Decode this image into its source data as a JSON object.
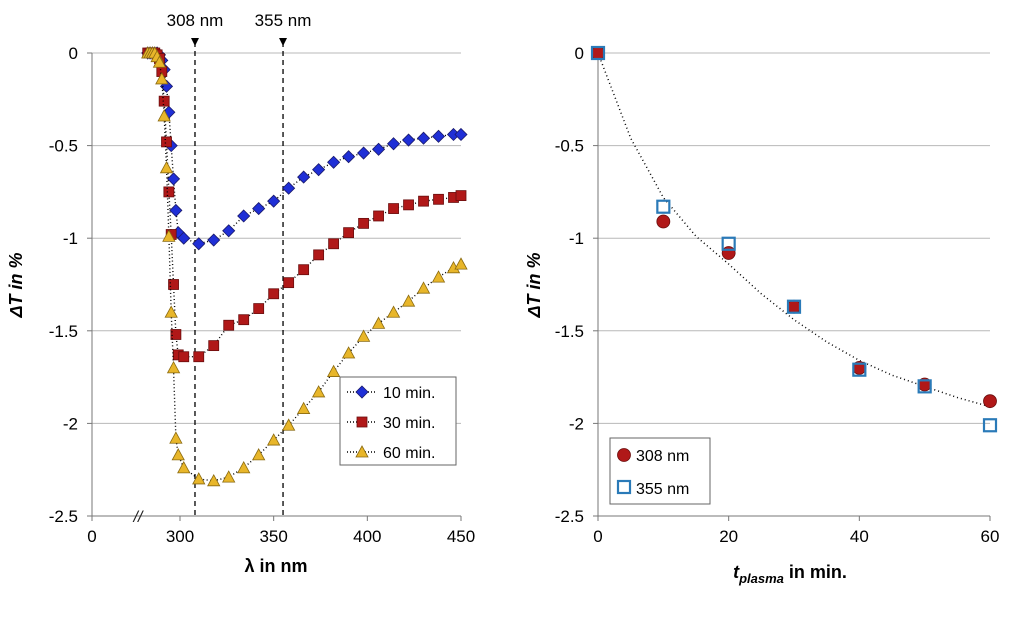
{
  "chart_data": [
    {
      "type": "line",
      "xlabel": "λ in nm",
      "ylabel": "ΔT in %",
      "xlim": [
        0,
        450
      ],
      "ylim": [
        -2.5,
        0
      ],
      "xticks": [
        "0",
        "300",
        "350",
        "400",
        "450"
      ],
      "yticks": [
        "0",
        "-0.5",
        "-1",
        "-1.5",
        "-2",
        "-2.5"
      ],
      "axis_break_label": "//",
      "grid": true,
      "legend_position": "bottom-right",
      "markers": [
        {
          "label": "308 nm",
          "x": 308
        },
        {
          "label": "355 nm",
          "x": 355
        }
      ],
      "series": [
        {
          "name": "10 min.",
          "color": "#1f2fd6",
          "marker": "diamond",
          "x": [
            190,
            198,
            206,
            214,
            222,
            230,
            238,
            246,
            254,
            262,
            270,
            278,
            286,
            294,
            302,
            310,
            318,
            326,
            334,
            342,
            350,
            358,
            366,
            374,
            382,
            390,
            398,
            406,
            414,
            422,
            430,
            438,
            446,
            450
          ],
          "y": [
            0,
            0,
            0,
            0,
            0,
            -0.01,
            -0.04,
            -0.09,
            -0.18,
            -0.32,
            -0.5,
            -0.68,
            -0.85,
            -0.97,
            -1.0,
            -1.03,
            -1.01,
            -0.96,
            -0.88,
            -0.84,
            -0.8,
            -0.73,
            -0.67,
            -0.63,
            -0.59,
            -0.56,
            -0.54,
            -0.52,
            -0.49,
            -0.47,
            -0.46,
            -0.45,
            -0.44,
            -0.44
          ]
        },
        {
          "name": "30 min.",
          "color": "#b01818",
          "marker": "square",
          "x": [
            190,
            198,
            206,
            214,
            222,
            230,
            238,
            246,
            254,
            262,
            270,
            278,
            286,
            294,
            302,
            310,
            318,
            326,
            334,
            342,
            350,
            358,
            366,
            374,
            382,
            390,
            398,
            406,
            414,
            422,
            430,
            438,
            446,
            450
          ],
          "y": [
            0,
            0,
            0,
            0,
            -0.01,
            -0.03,
            -0.1,
            -0.26,
            -0.48,
            -0.75,
            -0.98,
            -1.25,
            -1.52,
            -1.63,
            -1.64,
            -1.64,
            -1.58,
            -1.47,
            -1.44,
            -1.38,
            -1.3,
            -1.24,
            -1.17,
            -1.09,
            -1.03,
            -0.97,
            -0.92,
            -0.88,
            -0.84,
            -0.82,
            -0.8,
            -0.79,
            -0.78,
            -0.77
          ]
        },
        {
          "name": "60 min.",
          "color": "#e8b62a",
          "marker": "triangle",
          "x": [
            190,
            198,
            206,
            214,
            222,
            230,
            238,
            246,
            254,
            262,
            270,
            278,
            286,
            294,
            302,
            310,
            318,
            326,
            334,
            342,
            350,
            358,
            366,
            374,
            382,
            390,
            398,
            406,
            414,
            422,
            430,
            438,
            446,
            450
          ],
          "y": [
            0,
            0,
            0,
            0,
            -0.02,
            -0.05,
            -0.14,
            -0.34,
            -0.62,
            -0.99,
            -1.4,
            -1.7,
            -2.08,
            -2.17,
            -2.24,
            -2.3,
            -2.31,
            -2.29,
            -2.24,
            -2.17,
            -2.09,
            -2.01,
            -1.92,
            -1.83,
            -1.72,
            -1.62,
            -1.53,
            -1.46,
            -1.4,
            -1.34,
            -1.27,
            -1.21,
            -1.16,
            -1.14
          ]
        }
      ]
    },
    {
      "type": "scatter",
      "xlabel": "t",
      "xlabel_sub": "plasma",
      "xlabel_suffix": " in min.",
      "ylabel": "ΔT in %",
      "xlim": [
        0,
        60
      ],
      "ylim": [
        -2.5,
        0
      ],
      "xticks": [
        "0",
        "20",
        "40",
        "60"
      ],
      "yticks": [
        "0",
        "-0.5",
        "-1",
        "-1.5",
        "-2",
        "-2.5"
      ],
      "grid": true,
      "legend_position": "bottom-left",
      "trendline": {
        "style": "dotted",
        "x": [
          0,
          5,
          10,
          15,
          20,
          25,
          30,
          35,
          40,
          45,
          50,
          55,
          60
        ],
        "y": [
          0,
          -0.46,
          -0.78,
          -0.99,
          -1.14,
          -1.3,
          -1.44,
          -1.56,
          -1.66,
          -1.74,
          -1.8,
          -1.86,
          -1.91
        ]
      },
      "series": [
        {
          "name": "308 nm",
          "color": "#b01818",
          "marker": "circle",
          "x": [
            0,
            10,
            20,
            30,
            40,
            50,
            60
          ],
          "y": [
            0,
            -0.91,
            -1.08,
            -1.37,
            -1.7,
            -1.79,
            -1.88
          ]
        },
        {
          "name": "355 nm",
          "color": "#2a7ab8",
          "marker": "open-square",
          "x": [
            0,
            10,
            20,
            30,
            40,
            50,
            60
          ],
          "y": [
            0,
            -0.83,
            -1.03,
            -1.37,
            -1.71,
            -1.8,
            -2.01
          ]
        }
      ]
    }
  ]
}
